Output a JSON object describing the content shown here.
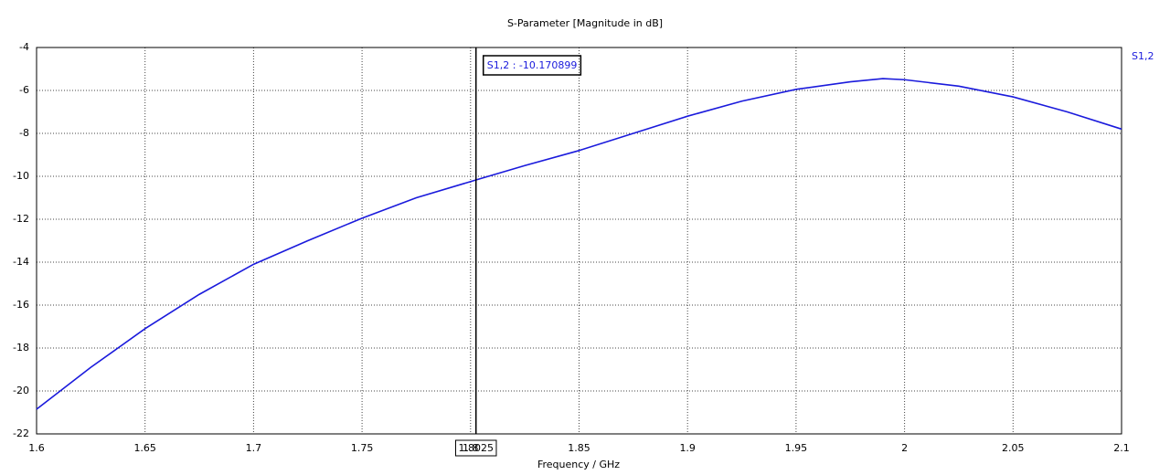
{
  "chart_data": {
    "type": "line",
    "title": "S-Parameter [Magnitude in dB]",
    "xlabel": "Frequency / GHz",
    "x": [
      1.6,
      1.625,
      1.65,
      1.675,
      1.7,
      1.725,
      1.75,
      1.775,
      1.8025,
      1.825,
      1.85,
      1.875,
      1.9,
      1.925,
      1.95,
      1.975,
      1.99,
      2.0,
      2.025,
      2.05,
      2.075,
      2.1
    ],
    "series": [
      {
        "name": "S1,2",
        "color": "#1a1adc",
        "values": [
          -20.85,
          -18.9,
          -17.1,
          -15.5,
          -14.1,
          -13.0,
          -11.95,
          -11.0,
          -10.17,
          -9.5,
          -8.8,
          -8.0,
          -7.2,
          -6.5,
          -5.95,
          -5.6,
          -5.45,
          -5.5,
          -5.8,
          -6.3,
          -7.0,
          -7.8
        ]
      }
    ],
    "xlim": [
      1.6,
      2.1
    ],
    "xticks": [
      1.6,
      1.65,
      1.7,
      1.75,
      1.8,
      1.85,
      1.9,
      1.95,
      2,
      2.05,
      2.1
    ],
    "ylim": [
      -22,
      -4
    ],
    "yticks": [
      -22,
      -20,
      -18,
      -16,
      -14,
      -12,
      -10,
      -8,
      -6,
      -4
    ],
    "grid": true,
    "legend": "right",
    "marker": {
      "x": 1.8025,
      "readout": "S1,2 : -10.170899"
    }
  }
}
